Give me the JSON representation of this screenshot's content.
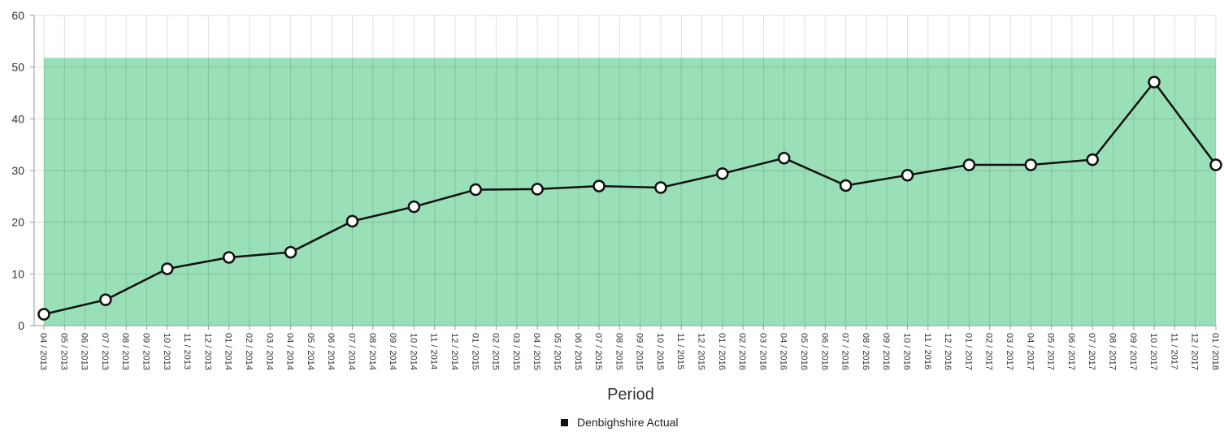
{
  "chart_data": {
    "type": "line",
    "xlabel": "Period",
    "ylabel": "",
    "ylim": [
      0,
      60
    ],
    "yticks": [
      0,
      10,
      20,
      30,
      40,
      50,
      60
    ],
    "grid": true,
    "legend_position": "bottom-center",
    "categories": [
      "04 / 2013",
      "05 / 2013",
      "06 / 2013",
      "07 / 2013",
      "08 / 2013",
      "09 / 2013",
      "10 / 2013",
      "11 / 2013",
      "12 / 2013",
      "01 / 2014",
      "02 / 2014",
      "03 / 2014",
      "04 / 2014",
      "05 / 2014",
      "06 / 2014",
      "07 / 2014",
      "08 / 2014",
      "09 / 2014",
      "10 / 2014",
      "11 / 2014",
      "12 / 2014",
      "01 / 2015",
      "02 / 2015",
      "03 / 2015",
      "04 / 2015",
      "05 / 2015",
      "06 / 2015",
      "07 / 2015",
      "08 / 2015",
      "09 / 2015",
      "10 / 2015",
      "11 / 2015",
      "12 / 2015",
      "01 / 2016",
      "02 / 2016",
      "03 / 2016",
      "04 / 2016",
      "05 / 2016",
      "06 / 2016",
      "07 / 2016",
      "08 / 2016",
      "09 / 2016",
      "10 / 2016",
      "11 / 2016",
      "12 / 2016",
      "01 / 2017",
      "02 / 2017",
      "03 / 2017",
      "04 / 2017",
      "05 / 2017",
      "06 / 2017",
      "07 / 2017",
      "08 / 2017",
      "09 / 2017",
      "10 / 2017",
      "11 / 2017",
      "12 / 2017",
      "01 / 2018"
    ],
    "series": [
      {
        "name": "Denbighshire Actual",
        "color": "#111111",
        "marker_fill": "#ffffff",
        "points": [
          {
            "x": "04 / 2013",
            "y": 2.2
          },
          {
            "x": "07 / 2013",
            "y": 5
          },
          {
            "x": "10 / 2013",
            "y": 11
          },
          {
            "x": "01 / 2014",
            "y": 13.2
          },
          {
            "x": "04 / 2014",
            "y": 14.2
          },
          {
            "x": "07 / 2014",
            "y": 20.2
          },
          {
            "x": "10 / 2014",
            "y": 23
          },
          {
            "x": "01 / 2015",
            "y": 26.3
          },
          {
            "x": "04 / 2015",
            "y": 26.4
          },
          {
            "x": "07 / 2015",
            "y": 27
          },
          {
            "x": "10 / 2015",
            "y": 26.7
          },
          {
            "x": "01 / 2016",
            "y": 29.4
          },
          {
            "x": "04 / 2016",
            "y": 32.4
          },
          {
            "x": "07 / 2016",
            "y": 27.1
          },
          {
            "x": "10 / 2016",
            "y": 29.1
          },
          {
            "x": "01 / 2017",
            "y": 31.1
          },
          {
            "x": "04 / 2017",
            "y": 31.1
          },
          {
            "x": "07 / 2017",
            "y": 32.1
          },
          {
            "x": "10 / 2017",
            "y": 47.1
          },
          {
            "x": "01 / 2018",
            "y": 31.1
          }
        ]
      }
    ],
    "band": {
      "y_from": 0,
      "y_to": 51.8,
      "color": "#99dfb8"
    }
  }
}
